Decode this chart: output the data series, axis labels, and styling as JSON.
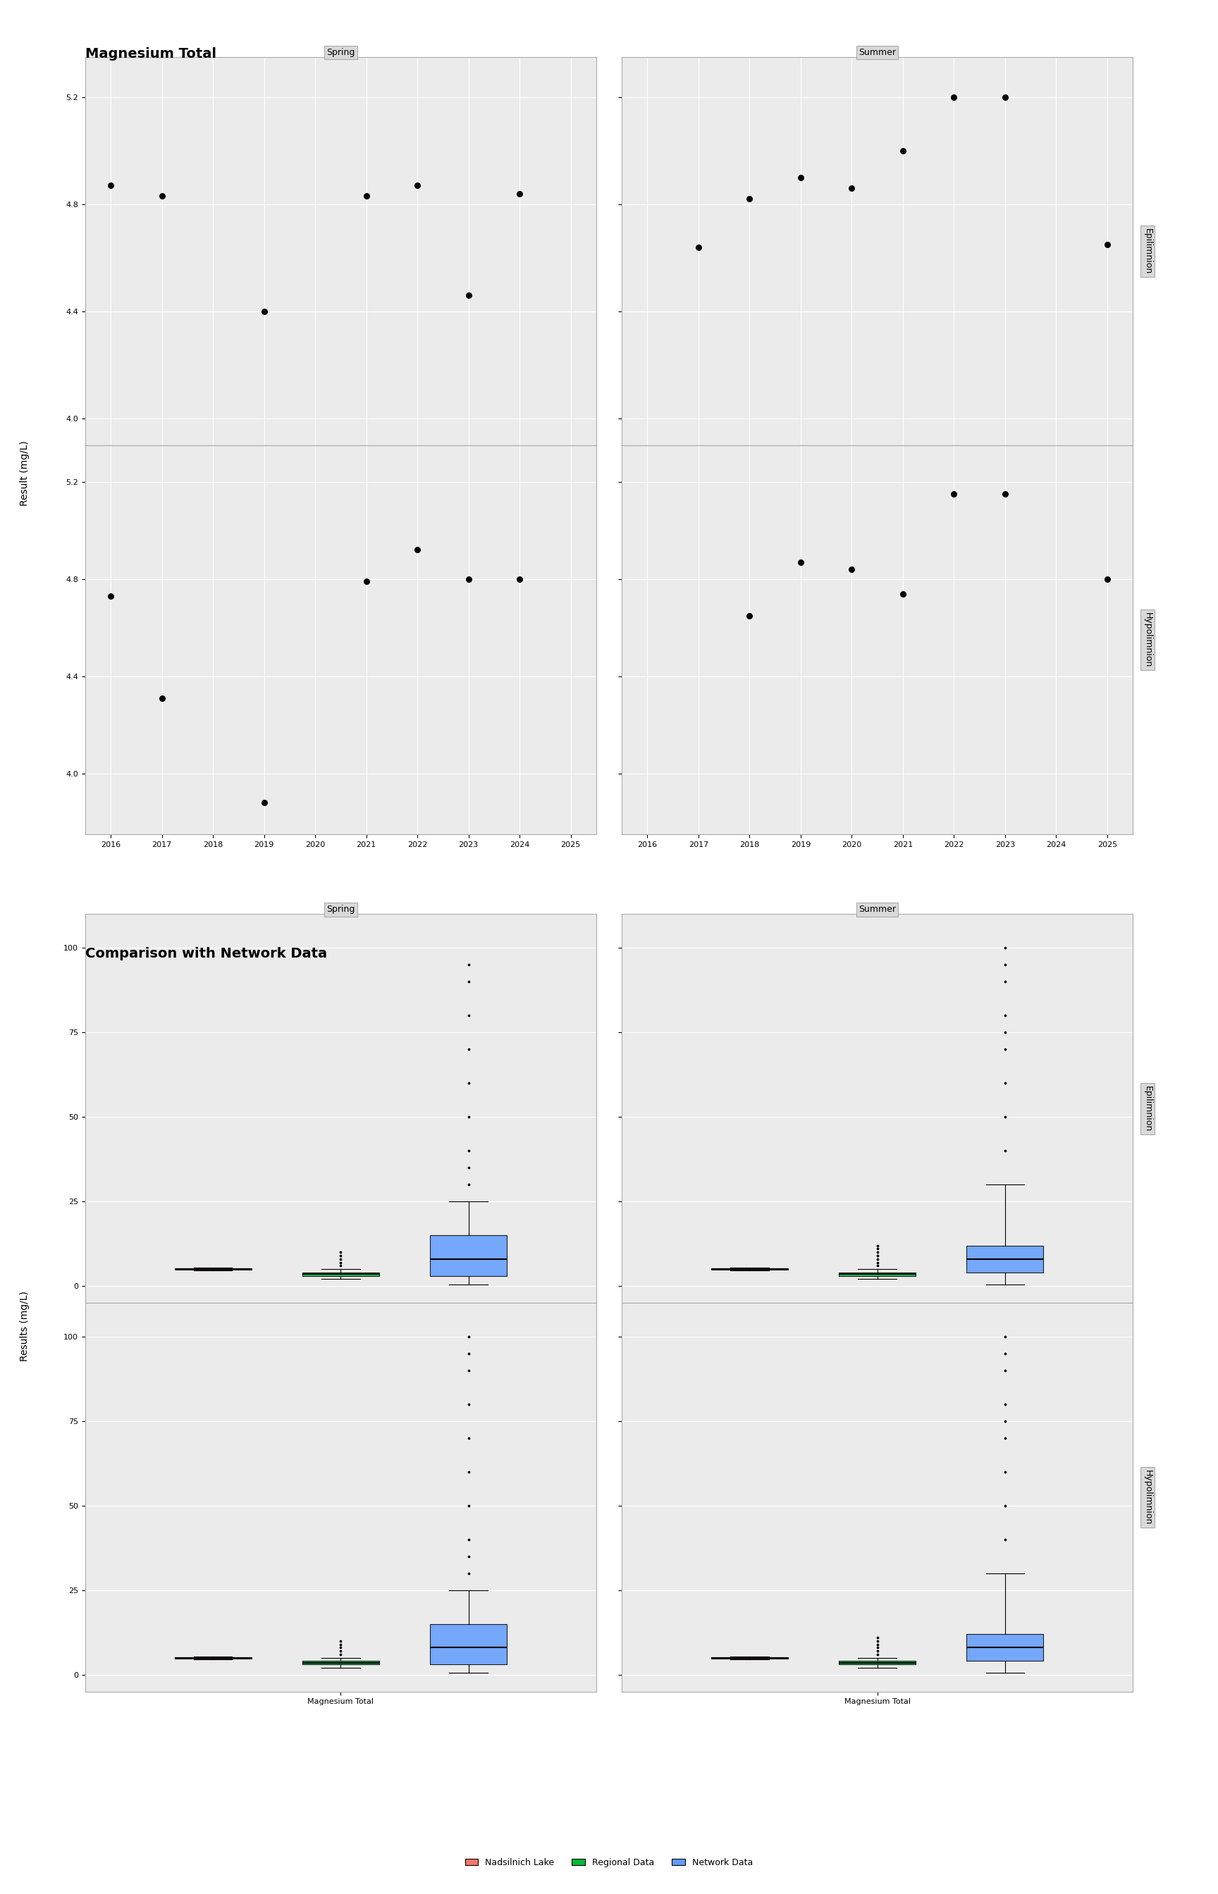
{
  "title1": "Magnesium Total",
  "title2": "Comparison with Network Data",
  "ylabel1": "Result (mg/L)",
  "ylabel2": "Results (mg/L)",
  "xlabel_bottom": "Magnesium Total",
  "seasons": [
    "Spring",
    "Summer"
  ],
  "strata": [
    "Epilimnion",
    "Hypolimnion"
  ],
  "scatter_spring_epi_x": [
    2016,
    2017,
    2019,
    2021,
    2022,
    2023,
    2024
  ],
  "scatter_spring_epi_y": [
    4.87,
    4.83,
    4.4,
    4.83,
    4.87,
    4.46,
    4.84
  ],
  "scatter_summer_epi_x": [
    2017,
    2018,
    2019,
    2020,
    2021,
    2022,
    2023,
    2025
  ],
  "scatter_summer_epi_y": [
    4.64,
    4.82,
    4.9,
    4.86,
    5.0,
    5.2,
    5.2,
    4.65
  ],
  "scatter_spring_hypo_x": [
    2016,
    2017,
    2019,
    2021,
    2022,
    2023,
    2024
  ],
  "scatter_spring_hypo_y": [
    4.73,
    4.31,
    3.88,
    4.79,
    4.92,
    4.8,
    4.8
  ],
  "scatter_summer_hypo_x": [
    2018,
    2019,
    2020,
    2021,
    2022,
    2023,
    2025
  ],
  "scatter_summer_hypo_y": [
    4.65,
    4.87,
    4.84,
    4.74,
    5.15,
    5.15,
    4.8
  ],
  "box_spring_epi_lake": {
    "median": 5.0,
    "q1": 4.8,
    "q3": 5.2,
    "whislo": 4.6,
    "whishi": 5.4,
    "fliers": []
  },
  "box_spring_epi_regional": {
    "median": 3.5,
    "q1": 3.0,
    "q3": 4.0,
    "whislo": 2.0,
    "whishi": 5.0,
    "fliers": [
      6.0,
      7.0,
      8.0,
      9.0,
      10.0
    ]
  },
  "box_spring_epi_network": {
    "median": 8.0,
    "q1": 3.0,
    "q3": 15.0,
    "whislo": 0.5,
    "whishi": 25.0,
    "fliers": [
      30.0,
      35.0,
      40.0,
      50.0,
      60.0,
      70.0,
      80.0,
      90.0,
      95.0
    ]
  },
  "box_summer_epi_lake": {
    "median": 5.0,
    "q1": 4.8,
    "q3": 5.2,
    "whislo": 4.6,
    "whishi": 5.4,
    "fliers": []
  },
  "box_summer_epi_regional": {
    "median": 3.5,
    "q1": 3.0,
    "q3": 4.0,
    "whislo": 2.0,
    "whishi": 5.0,
    "fliers": [
      6.0,
      7.0,
      8.0,
      9.0,
      10.0,
      11.0,
      12.0
    ]
  },
  "box_summer_epi_network": {
    "median": 8.0,
    "q1": 4.0,
    "q3": 12.0,
    "whislo": 0.5,
    "whishi": 30.0,
    "fliers": [
      40.0,
      50.0,
      60.0,
      70.0,
      75.0,
      80.0,
      90.0,
      95.0,
      100.0
    ]
  },
  "box_spring_hypo_lake": {
    "median": 5.0,
    "q1": 4.8,
    "q3": 5.2,
    "whislo": 4.6,
    "whishi": 5.4,
    "fliers": []
  },
  "box_spring_hypo_regional": {
    "median": 3.5,
    "q1": 3.0,
    "q3": 4.0,
    "whislo": 2.0,
    "whishi": 5.0,
    "fliers": [
      6.0,
      7.0,
      8.0,
      9.0,
      10.0
    ]
  },
  "box_spring_hypo_network": {
    "median": 8.0,
    "q1": 3.0,
    "q3": 15.0,
    "whislo": 0.5,
    "whishi": 25.0,
    "fliers": [
      30.0,
      35.0,
      40.0,
      50.0,
      60.0,
      70.0,
      80.0,
      90.0,
      95.0,
      100.0
    ]
  },
  "box_summer_hypo_lake": {
    "median": 5.0,
    "q1": 4.8,
    "q3": 5.2,
    "whislo": 4.6,
    "whishi": 5.4,
    "fliers": []
  },
  "box_summer_hypo_regional": {
    "median": 3.5,
    "q1": 3.0,
    "q3": 4.0,
    "whislo": 2.0,
    "whishi": 5.0,
    "fliers": [
      6.0,
      7.0,
      8.0,
      9.0,
      10.0,
      11.0
    ]
  },
  "box_summer_hypo_network": {
    "median": 8.0,
    "q1": 4.0,
    "q3": 12.0,
    "whislo": 0.5,
    "whishi": 30.0,
    "fliers": [
      40.0,
      50.0,
      60.0,
      70.0,
      75.0,
      80.0,
      90.0,
      95.0,
      100.0
    ]
  },
  "color_lake": "#F8766D",
  "color_regional": "#00BA38",
  "color_network": "#619CFF",
  "color_point": "black",
  "panel_bg": "#EBEBEB",
  "strip_bg": "#D9D9D9",
  "grid_color": "white",
  "legend_labels": [
    "Nadsilnich Lake",
    "Regional Data",
    "Network Data"
  ],
  "legend_colors": [
    "#F8766D",
    "#00BA38",
    "#619CFF"
  ]
}
